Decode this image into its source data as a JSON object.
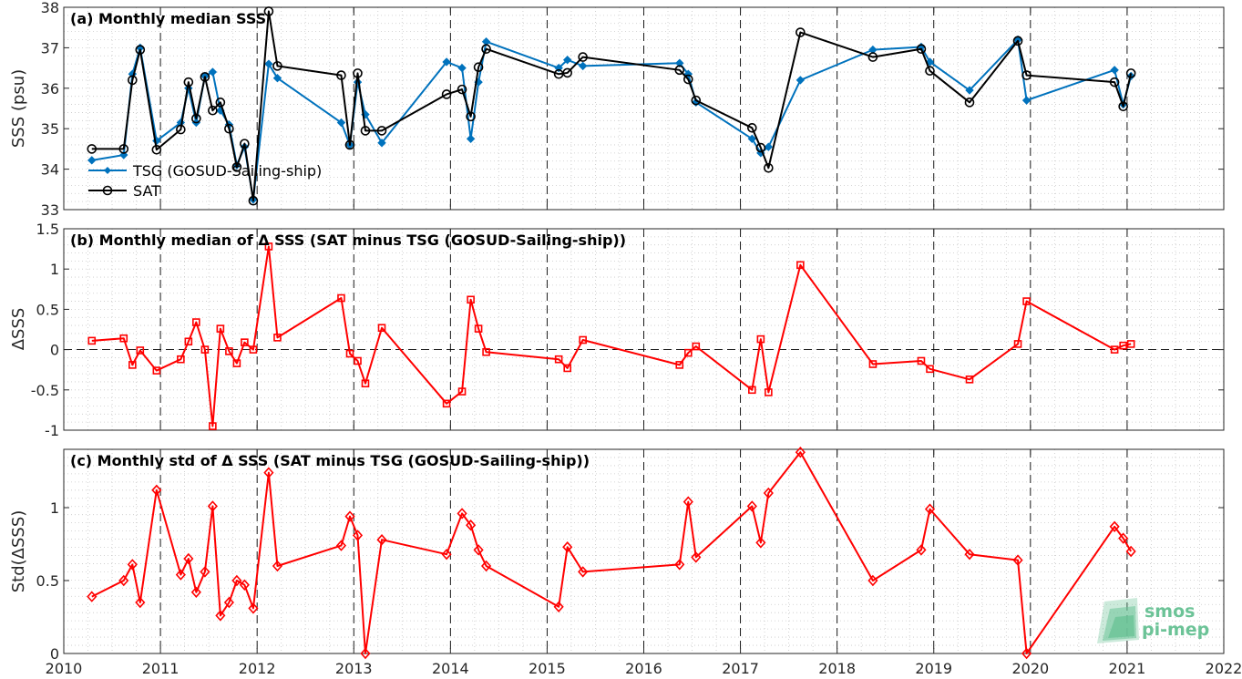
{
  "chart_data": [
    {
      "type": "line",
      "title": "(a) Monthly median SSS",
      "ylabel": "SSS (psu)",
      "ylim": [
        33,
        38
      ],
      "yticks": [
        "33",
        "34",
        "35",
        "36",
        "37",
        "38"
      ],
      "xlim": [
        2010,
        2022
      ],
      "grid": "minor dotted, dashed year lines",
      "legend_position": "lower-left",
      "series": [
        {
          "name": "TSG (GOSUD-Sailing-ship)",
          "color": "#0072bd",
          "marker": "diamond-filled",
          "x": [
            2010.29,
            2010.62,
            2010.71,
            2010.79,
            2010.96,
            2011.21,
            2011.29,
            2011.37,
            2011.46,
            2011.54,
            2011.62,
            2011.71,
            2011.79,
            2011.87,
            2011.96,
            2012.12,
            2012.21,
            2012.87,
            2012.96,
            2013.04,
            2013.12,
            2013.29,
            2013.96,
            2014.12,
            2014.21,
            2014.29,
            2014.37,
            2015.12,
            2015.21,
            2015.37,
            2016.37,
            2016.46,
            2016.54,
            2017.12,
            2017.21,
            2017.29,
            2017.62,
            2018.37,
            2018.87,
            2018.96,
            2019.37,
            2019.87,
            2019.96,
            2020.87,
            2020.96,
            2021.04
          ],
          "y": [
            34.22,
            34.35,
            36.35,
            37.0,
            34.7,
            35.15,
            36.0,
            35.15,
            36.3,
            36.4,
            35.45,
            35.1,
            34.1,
            34.55,
            33.25,
            36.6,
            36.25,
            35.15,
            34.6,
            36.15,
            35.35,
            34.65,
            36.65,
            36.5,
            34.75,
            36.15,
            37.15,
            36.5,
            36.7,
            36.55,
            36.62,
            36.35,
            35.65,
            34.75,
            34.4,
            34.55,
            36.2,
            36.95,
            37.02,
            36.65,
            35.95,
            37.2,
            35.7,
            36.45,
            35.6,
            36.3
          ]
        },
        {
          "name": "SAT",
          "color": "#000000",
          "marker": "circle-open",
          "x": [
            2010.29,
            2010.62,
            2010.71,
            2010.79,
            2010.96,
            2011.21,
            2011.29,
            2011.37,
            2011.46,
            2011.54,
            2011.62,
            2011.71,
            2011.79,
            2011.87,
            2011.96,
            2012.12,
            2012.21,
            2012.87,
            2012.96,
            2013.04,
            2013.12,
            2013.29,
            2013.96,
            2014.12,
            2014.21,
            2014.29,
            2014.37,
            2015.12,
            2015.21,
            2015.37,
            2016.37,
            2016.46,
            2016.54,
            2017.12,
            2017.21,
            2017.29,
            2017.62,
            2018.37,
            2018.87,
            2018.96,
            2019.37,
            2019.87,
            2019.96,
            2020.87,
            2020.96,
            2021.04
          ],
          "y": [
            34.5,
            34.5,
            36.2,
            36.95,
            34.48,
            34.98,
            36.15,
            35.25,
            36.28,
            35.45,
            35.65,
            35.0,
            34.05,
            34.63,
            33.22,
            37.9,
            36.55,
            36.32,
            34.6,
            36.37,
            34.95,
            34.95,
            35.85,
            35.97,
            35.3,
            36.52,
            36.97,
            36.35,
            36.38,
            36.77,
            36.45,
            36.22,
            35.7,
            35.02,
            34.53,
            34.03,
            37.38,
            36.77,
            36.97,
            36.43,
            35.65,
            37.17,
            36.32,
            36.15,
            35.55,
            36.37
          ]
        }
      ]
    },
    {
      "type": "line",
      "title": "(b) Monthly median of Δ SSS (SAT minus TSG (GOSUD-Sailing-ship))",
      "ylabel": "ΔSSS",
      "ylim": [
        -1,
        1.5
      ],
      "yticks": [
        "-1",
        "-0.5",
        "0",
        "0.5",
        "1",
        "1.5"
      ],
      "xlim": [
        2010,
        2022
      ],
      "zero_line": "dashed",
      "series": [
        {
          "name": "",
          "color": "#ff0000",
          "marker": "square-open",
          "x": [
            2010.29,
            2010.62,
            2010.71,
            2010.79,
            2010.96,
            2011.21,
            2011.29,
            2011.37,
            2011.46,
            2011.54,
            2011.62,
            2011.71,
            2011.79,
            2011.87,
            2011.96,
            2012.12,
            2012.21,
            2012.87,
            2012.96,
            2013.04,
            2013.12,
            2013.29,
            2013.96,
            2014.12,
            2014.21,
            2014.29,
            2014.37,
            2015.12,
            2015.21,
            2015.37,
            2016.37,
            2016.46,
            2016.54,
            2017.12,
            2017.21,
            2017.29,
            2017.62,
            2018.37,
            2018.87,
            2018.96,
            2019.37,
            2019.87,
            2019.96,
            2020.87,
            2020.96,
            2021.04
          ],
          "y": [
            0.11,
            0.14,
            -0.19,
            -0.01,
            -0.26,
            -0.12,
            0.1,
            0.34,
            0.0,
            -0.95,
            0.26,
            -0.02,
            -0.17,
            0.09,
            0.0,
            1.28,
            0.15,
            0.64,
            -0.05,
            -0.14,
            -0.42,
            0.27,
            -0.67,
            -0.52,
            0.62,
            0.26,
            -0.03,
            -0.12,
            -0.23,
            0.12,
            -0.19,
            -0.04,
            0.04,
            -0.5,
            0.13,
            -0.53,
            1.05,
            -0.18,
            -0.14,
            -0.24,
            -0.37,
            0.07,
            0.6,
            0.0,
            0.05,
            0.07
          ]
        }
      ]
    },
    {
      "type": "line",
      "title": "(c) Monthly std of Δ SSS (SAT minus TSG (GOSUD-Sailing-ship))",
      "ylabel": "Std(ΔSSS)",
      "ylim": [
        0,
        1.4
      ],
      "yticks": [
        "0",
        "0.5",
        "1"
      ],
      "xlim": [
        2010,
        2022
      ],
      "xticks": [
        "2010",
        "2011",
        "2012",
        "2013",
        "2014",
        "2015",
        "2016",
        "2017",
        "2018",
        "2019",
        "2020",
        "2021",
        "2022"
      ],
      "series": [
        {
          "name": "",
          "color": "#ff0000",
          "marker": "diamond-open",
          "x": [
            2010.29,
            2010.62,
            2010.71,
            2010.79,
            2010.96,
            2011.21,
            2011.29,
            2011.37,
            2011.46,
            2011.54,
            2011.62,
            2011.71,
            2011.79,
            2011.87,
            2011.96,
            2012.12,
            2012.21,
            2012.87,
            2012.96,
            2013.04,
            2013.12,
            2013.29,
            2013.96,
            2014.12,
            2014.21,
            2014.29,
            2014.37,
            2015.12,
            2015.21,
            2015.37,
            2016.37,
            2016.46,
            2016.54,
            2017.12,
            2017.21,
            2017.29,
            2017.62,
            2018.37,
            2018.87,
            2018.96,
            2019.37,
            2019.87,
            2019.96,
            2020.87,
            2020.96,
            2021.04
          ],
          "y": [
            0.39,
            0.5,
            0.61,
            0.35,
            1.12,
            0.54,
            0.65,
            0.42,
            0.56,
            1.01,
            0.26,
            0.35,
            0.5,
            0.47,
            0.31,
            1.24,
            0.6,
            0.74,
            0.94,
            0.81,
            0.0,
            0.78,
            0.68,
            0.96,
            0.88,
            0.71,
            0.6,
            0.32,
            0.73,
            0.56,
            0.61,
            1.04,
            0.66,
            1.01,
            0.76,
            1.1,
            1.38,
            0.5,
            0.71,
            0.99,
            0.68,
            0.64,
            0.0,
            0.87,
            0.79,
            0.7
          ]
        }
      ]
    }
  ],
  "logo": {
    "line1": "smos",
    "line2": "pi-mep",
    "color": "#6cc397"
  }
}
